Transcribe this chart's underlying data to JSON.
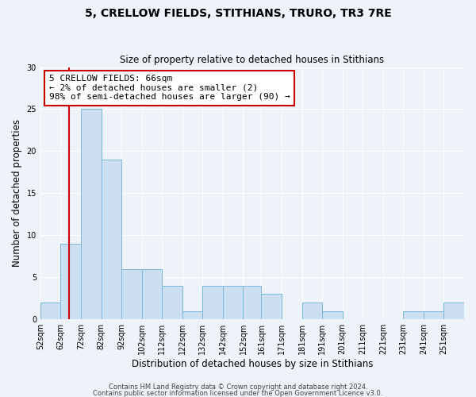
{
  "title": "5, CRELLOW FIELDS, STITHIANS, TRURO, TR3 7RE",
  "subtitle": "Size of property relative to detached houses in Stithians",
  "xlabel": "Distribution of detached houses by size in Stithians",
  "ylabel": "Number of detached properties",
  "bin_labels": [
    "52sqm",
    "62sqm",
    "72sqm",
    "82sqm",
    "92sqm",
    "102sqm",
    "112sqm",
    "122sqm",
    "132sqm",
    "142sqm",
    "152sqm",
    "161sqm",
    "171sqm",
    "181sqm",
    "191sqm",
    "201sqm",
    "211sqm",
    "221sqm",
    "231sqm",
    "241sqm",
    "251sqm"
  ],
  "bin_edges": [
    52,
    62,
    72,
    82,
    92,
    102,
    112,
    122,
    132,
    142,
    152,
    161,
    171,
    181,
    191,
    201,
    211,
    221,
    231,
    241,
    251,
    261
  ],
  "bar_heights": [
    2,
    9,
    25,
    19,
    6,
    6,
    4,
    1,
    4,
    4,
    4,
    3,
    0,
    2,
    1,
    0,
    0,
    0,
    1,
    1,
    2
  ],
  "bar_color": "#ccdff0",
  "bar_edge_color": "#7ab8d9",
  "vline_x": 66,
  "vline_color": "#cc0000",
  "annotation_text": "5 CRELLOW FIELDS: 66sqm\n← 2% of detached houses are smaller (2)\n98% of semi-detached houses are larger (90) →",
  "annotation_box_color": "#ffffff",
  "annotation_border_color": "#cc0000",
  "ylim": [
    0,
    30
  ],
  "yticks": [
    0,
    5,
    10,
    15,
    20,
    25,
    30
  ],
  "footer_line1": "Contains HM Land Registry data © Crown copyright and database right 2024.",
  "footer_line2": "Contains public sector information licensed under the Open Government Licence v3.0.",
  "bg_color": "#eef2f9",
  "plot_bg_color": "#eef2f9"
}
